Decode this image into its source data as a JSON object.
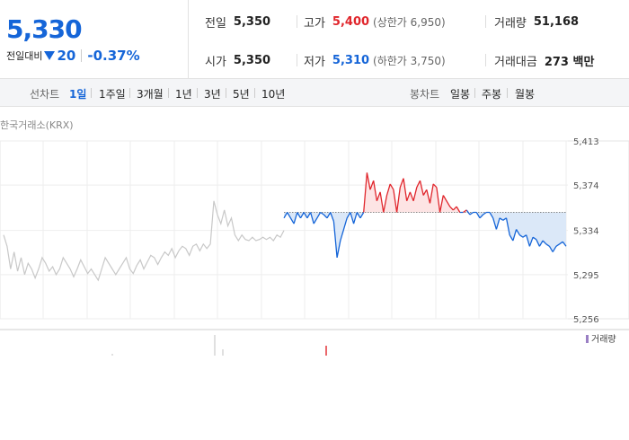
{
  "quote": {
    "price": "5,330",
    "change_label": "전일대비",
    "change_amount": "20",
    "change_percent": "-0.37%",
    "direction_icon": "down-triangle-icon"
  },
  "stats": {
    "prev_close": {
      "label": "전일",
      "value": "5,350"
    },
    "open": {
      "label": "시가",
      "value": "5,350"
    },
    "high": {
      "label": "고가",
      "value": "5,400",
      "limit": "(상한가 6,950)"
    },
    "low": {
      "label": "저가",
      "value": "5,310",
      "limit": "(하한가 3,750)"
    },
    "volume": {
      "label": "거래량",
      "value": "51,168"
    },
    "turnover": {
      "label": "거래대금",
      "value": "273 백만"
    }
  },
  "line_chart_tabs": {
    "label": "선차트",
    "items": [
      "1일",
      "1주일",
      "3개월",
      "1년",
      "3년",
      "5년",
      "10년"
    ],
    "active": "1일"
  },
  "candle_chart_tabs": {
    "label": "봉차트",
    "items": [
      "일봉",
      "주봉",
      "월봉"
    ]
  },
  "chart_source": "한국거래소(KRX)",
  "volume_legend": "거래량",
  "colors": {
    "up": "#e0262c",
    "down": "#1565d8",
    "premarket": "#c8c8c8",
    "up_fill": "#fde4e4",
    "down_fill": "#dbe8f8"
  },
  "chart_data": {
    "type": "line",
    "title": "",
    "xlabel": "",
    "ylabel": "",
    "y_ticks": [
      "5,413",
      "5,374",
      "5,334",
      "5,295",
      "5,256"
    ],
    "ylim": [
      5256,
      5413
    ],
    "reference_price": 5350,
    "grid": true,
    "series": [
      {
        "values": [
          5330,
          5320,
          5300,
          5315,
          5298,
          5310,
          5295,
          5305,
          5300,
          5292,
          5300,
          5310,
          5305,
          5298,
          5302,
          5295,
          5300,
          5310,
          5305,
          5300,
          5293,
          5300,
          5308,
          5302,
          5296,
          5300,
          5295,
          5290,
          5300,
          5310,
          5305,
          5300,
          5295,
          5300,
          5305,
          5310,
          5300,
          5296,
          5303,
          5308,
          5300,
          5306,
          5312,
          5310,
          5304,
          5310,
          5315,
          5312,
          5318,
          5310,
          5316,
          5320,
          5318,
          5312,
          5320,
          5322,
          5316,
          5322,
          5318,
          5322,
          5360,
          5348,
          5340,
          5352,
          5338,
          5345,
          5330,
          5325,
          5330,
          5326,
          5325,
          5328,
          5325,
          5326,
          5328,
          5326,
          5328,
          5325,
          5330,
          5328,
          5334
        ]
      },
      {
        "values": [
          5345,
          5350,
          5345,
          5340,
          5350,
          5345,
          5350,
          5345,
          5350,
          5340,
          5345,
          5350,
          5348,
          5345,
          5350,
          5342,
          5310,
          5325,
          5335,
          5345,
          5350,
          5340,
          5350,
          5345,
          5350,
          5385,
          5370,
          5378,
          5360,
          5368,
          5350,
          5365,
          5375,
          5370,
          5350,
          5372,
          5380,
          5360,
          5368,
          5360,
          5372,
          5378,
          5365,
          5370,
          5358,
          5375,
          5372,
          5350,
          5365,
          5360,
          5355,
          5352,
          5355,
          5350,
          5350,
          5352,
          5348,
          5350,
          5350,
          5345,
          5348,
          5350,
          5350,
          5345,
          5335,
          5345,
          5343,
          5345,
          5330,
          5325,
          5335,
          5330,
          5328,
          5330,
          5320,
          5328,
          5326,
          5320,
          5325,
          5322,
          5320,
          5315,
          5320,
          5322,
          5324,
          5320
        ]
      }
    ]
  }
}
